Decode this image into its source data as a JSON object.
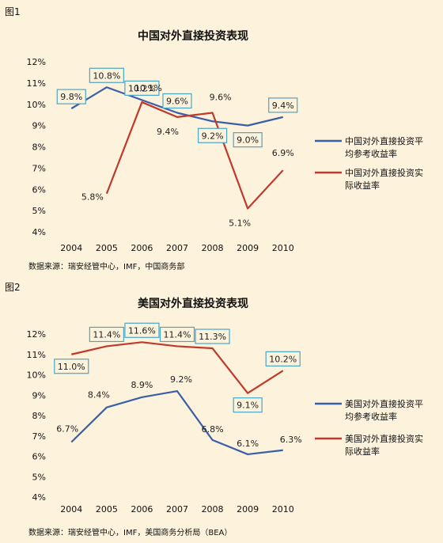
{
  "figures": [
    {
      "label": "图1",
      "source": "数据来源：瑞安经管中心，IMF，中国商务部"
    },
    {
      "label": "图2",
      "source": "数据来源：瑞安经管中心，IMF，美国商务分析局（BEA）"
    }
  ],
  "colors": {
    "blue": "#3b5ea8",
    "red": "#c0392b",
    "box_border": "#4aa6c8",
    "background": "#fdf2dc"
  },
  "chart_data": [
    {
      "type": "line",
      "title": "中国对外直接投资表现",
      "categories": [
        "2004",
        "2005",
        "2006",
        "2007",
        "2008",
        "2009",
        "2010"
      ],
      "y_ticks": [
        "4%",
        "5%",
        "6%",
        "7%",
        "8%",
        "9%",
        "10%",
        "11%",
        "12%"
      ],
      "ylim": [
        4,
        12
      ],
      "legend_position": "right",
      "series": [
        {
          "name": "中国对外直接投资平均参考收益率",
          "legend_lines": [
            "中国对外直接投资平",
            "均参考收益率"
          ],
          "color": "#3b5ea8",
          "x": [
            "2004",
            "2005",
            "2006",
            "2007",
            "2008",
            "2009",
            "2010"
          ],
          "values": [
            9.8,
            10.8,
            10.2,
            9.6,
            9.2,
            9.0,
            9.4
          ],
          "labels": [
            "9.8%",
            "10.8%",
            "10.2%",
            "9.6%",
            "9.2%",
            "9.0%",
            "9.4%"
          ],
          "boxed": true
        },
        {
          "name": "中国对外直接投资实际收益率",
          "legend_lines": [
            "中国对外直接投资实",
            "际收益率"
          ],
          "color": "#c0392b",
          "x": [
            "2005",
            "2006",
            "2007",
            "2008",
            "2009",
            "2010"
          ],
          "values": [
            5.8,
            10.1,
            9.4,
            9.6,
            5.1,
            6.9
          ],
          "labels": [
            "5.8%",
            "10.1%",
            "9.4%",
            "9.6%",
            "5.1%",
            "6.9%"
          ],
          "boxed": false
        }
      ]
    },
    {
      "type": "line",
      "title": "美国对外直接投资表现",
      "categories": [
        "2004",
        "2005",
        "2006",
        "2007",
        "2008",
        "2009",
        "2010"
      ],
      "y_ticks": [
        "4%",
        "5%",
        "6%",
        "7%",
        "8%",
        "9%",
        "10%",
        "11%",
        "12%"
      ],
      "ylim": [
        4,
        12
      ],
      "legend_position": "right",
      "series": [
        {
          "name": "美国对外直接投资平均参考收益率",
          "legend_lines": [
            "美国对外直接投资平",
            "均参考收益率"
          ],
          "color": "#3b5ea8",
          "x": [
            "2004",
            "2005",
            "2006",
            "2007",
            "2008",
            "2009",
            "2010"
          ],
          "values": [
            6.7,
            8.4,
            8.9,
            9.2,
            6.8,
            6.1,
            6.3
          ],
          "labels": [
            "6.7%",
            "8.4%",
            "8.9%",
            "9.2%",
            "6.8%",
            "6.1%",
            "6.3%"
          ],
          "boxed": false
        },
        {
          "name": "美国对外直接投资实际收益率",
          "legend_lines": [
            "美国对外直接投资实",
            "际收益率"
          ],
          "color": "#c0392b",
          "x": [
            "2004",
            "2005",
            "2006",
            "2007",
            "2008",
            "2009",
            "2010"
          ],
          "values": [
            11.0,
            11.4,
            11.6,
            11.4,
            11.3,
            9.1,
            10.2
          ],
          "labels": [
            "11.0%",
            "11.4%",
            "11.6%",
            "11.4%",
            "11.3%",
            "9.1%",
            "10.2%"
          ],
          "boxed": true
        }
      ]
    }
  ]
}
